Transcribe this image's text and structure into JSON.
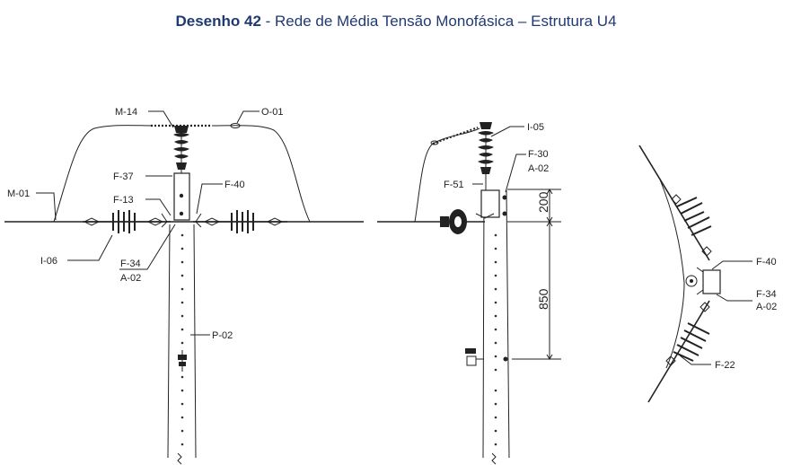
{
  "title": {
    "bold": "Desenho 42",
    "rest": " - Rede de Média Tensão Monofásica – Estrutura U4"
  },
  "front_view": {
    "labels": {
      "m14": "M-14",
      "o01": "O-01",
      "f37": "F-37",
      "m01": "M-01",
      "f13": "F-13",
      "f40": "F-40",
      "i06": "I-06",
      "f34": "F-34",
      "a02": "A-02",
      "p02": "P-02"
    }
  },
  "side_view": {
    "labels": {
      "i05": "I-05",
      "f30": "F-30",
      "a02": "A-02",
      "f51": "F-51"
    },
    "dimensions": {
      "upper": "200",
      "lower": "850"
    }
  },
  "top_view": {
    "labels": {
      "f40": "F-40",
      "f34": "F-34",
      "a02": "A-02",
      "f22": "F-22"
    }
  }
}
